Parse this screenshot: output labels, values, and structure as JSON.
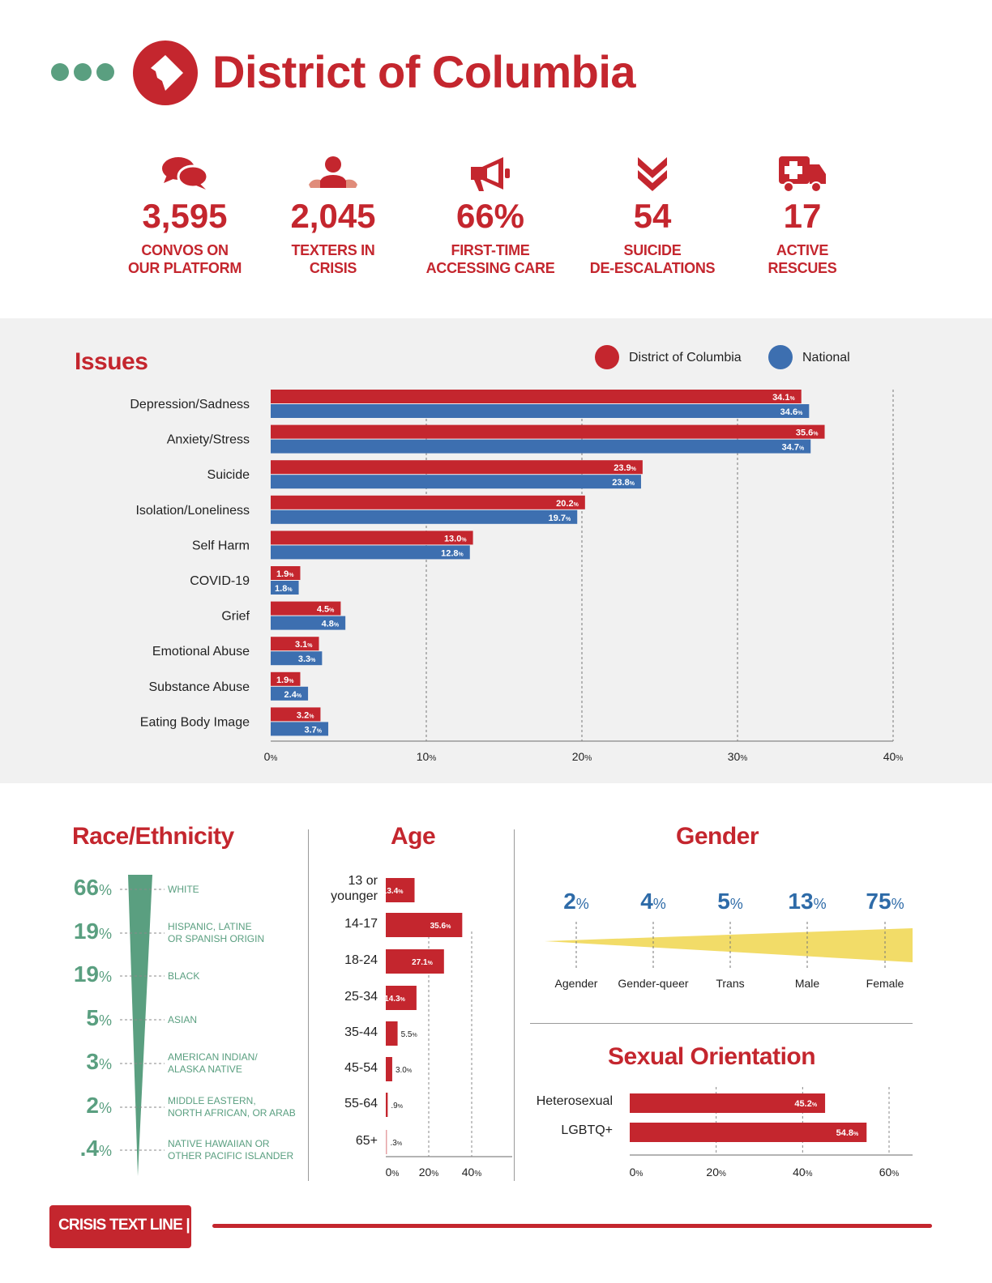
{
  "header": {
    "title": "District of Columbia",
    "dots_icon": "three-dots-icon",
    "logo_icon": "dc-map-icon"
  },
  "stats": [
    {
      "icon": "chat-bubbles-icon",
      "value": "3,595",
      "label1": "CONVOS ON",
      "label2": "OUR PLATFORM"
    },
    {
      "icon": "person-icon",
      "value": "2,045",
      "label1": "TEXTERS IN",
      "label2": "CRISIS"
    },
    {
      "icon": "megaphone-icon",
      "value": "66%",
      "label1": "FIRST-TIME",
      "label2": "ACCESSING CARE"
    },
    {
      "icon": "double-chevron-down-icon",
      "value": "54",
      "label1": "SUICIDE",
      "label2": "DE-ESCALATIONS"
    },
    {
      "icon": "ambulance-icon",
      "value": "17",
      "label1": "ACTIVE",
      "label2": "RESCUES"
    }
  ],
  "colors": {
    "red": "#c4262e",
    "blue": "#3d6fb0",
    "green": "#5a9f80",
    "yellow": "#f2dc68",
    "gender_blue": "#2e6ba8"
  },
  "issues": {
    "title": "Issues",
    "legend": [
      "District of Columbia",
      "National"
    ],
    "chart_data": {
      "type": "bar",
      "orientation": "horizontal",
      "categories": [
        "Depression/Sadness",
        "Anxiety/Stress",
        "Suicide",
        "Isolation/Loneliness",
        "Self Harm",
        "COVID-19",
        "Grief",
        "Emotional Abuse",
        "Substance Abuse",
        "Eating Body Image"
      ],
      "series": [
        {
          "name": "District of Columbia",
          "values": [
            34.1,
            35.6,
            23.9,
            20.2,
            13.0,
            1.9,
            4.5,
            3.1,
            1.9,
            3.2
          ],
          "labels": [
            "34.1",
            "35.6",
            "23.9",
            "20.2",
            "13.0",
            "1.9",
            "4.5",
            "3.1",
            "1.9",
            "3.2"
          ]
        },
        {
          "name": "National",
          "values": [
            34.6,
            34.7,
            23.8,
            19.7,
            12.8,
            1.8,
            4.8,
            3.3,
            2.4,
            3.7
          ],
          "labels": [
            "34.6",
            "34.7",
            "23.8",
            "19.7",
            "12.8",
            "1.8",
            "4.8",
            "3.3",
            "2.4",
            "3.7"
          ]
        }
      ],
      "xlim": [
        0,
        40
      ],
      "ticks": [
        0,
        10,
        20,
        30,
        40
      ],
      "unit": "%"
    }
  },
  "race": {
    "title": "Race/Ethnicity",
    "chart_data": {
      "type": "bar",
      "shape": "funnel",
      "items": [
        {
          "value": 66,
          "display": "66",
          "label": "WHITE"
        },
        {
          "value": 19,
          "display": "19",
          "label": "HISPANIC, LATINE\nOR SPANISH ORIGIN"
        },
        {
          "value": 19,
          "display": "19",
          "label": "BLACK"
        },
        {
          "value": 5,
          "display": "5",
          "label": "ASIAN"
        },
        {
          "value": 3,
          "display": "3",
          "label": "AMERICAN INDIAN/\nALASKA NATIVE"
        },
        {
          "value": 2,
          "display": "2",
          "label": "MIDDLE EASTERN,\nNORTH AFRICAN, OR ARAB"
        },
        {
          "value": 0.4,
          "display": ".4",
          "label": "NATIVE HAWAIIAN OR\nOTHER PACIFIC ISLANDER"
        }
      ],
      "unit": "%"
    }
  },
  "age": {
    "title": "Age",
    "chart_data": {
      "type": "bar",
      "orientation": "horizontal",
      "categories": [
        "13 or\nyounger",
        "14-17",
        "18-24",
        "25-34",
        "35-44",
        "45-54",
        "55-64",
        "65+"
      ],
      "values": [
        13.4,
        35.6,
        27.1,
        14.3,
        5.5,
        3.0,
        0.9,
        0.3
      ],
      "labels": [
        "13.4",
        "35.6",
        "27.1",
        "14.3",
        "5.5",
        "3.0",
        ".9",
        ".3"
      ],
      "xlim": [
        0,
        50
      ],
      "ticks": [
        0,
        20,
        40
      ],
      "unit": "%"
    }
  },
  "gender": {
    "title": "Gender",
    "chart_data": {
      "type": "bar",
      "items": [
        {
          "label": "Agender",
          "value": 2
        },
        {
          "label": "Gender-queer",
          "value": 4
        },
        {
          "label": "Trans",
          "value": 5
        },
        {
          "label": "Male",
          "value": 13
        },
        {
          "label": "Female",
          "value": 75
        }
      ],
      "unit": "%"
    }
  },
  "orientation": {
    "title": "Sexual Orientation",
    "chart_data": {
      "type": "bar",
      "orientation": "horizontal",
      "categories": [
        "Heterosexual",
        "LGBTQ+"
      ],
      "values": [
        45.2,
        54.8
      ],
      "labels": [
        "45.2",
        "54.8"
      ],
      "xlim": [
        0,
        60
      ],
      "ticks": [
        0,
        20,
        40,
        60
      ],
      "unit": "%"
    }
  },
  "footer": {
    "brand": "CRISIS TEXT LINE |"
  }
}
